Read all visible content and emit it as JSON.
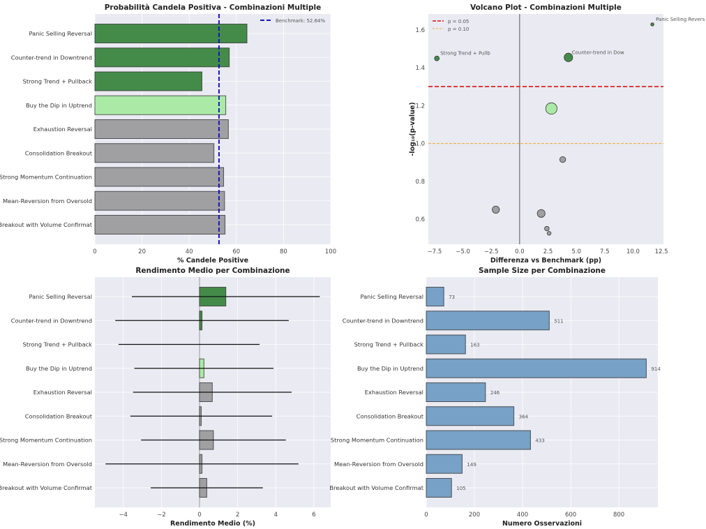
{
  "colors": {
    "background": "#eaeaf2",
    "grid": "#ffffff",
    "dark_green": "#448b4a",
    "light_green": "#aaeaa6",
    "gray": "#a0a0a2",
    "steelblue": "#77a1c6",
    "benchmark": "#1515c0",
    "p005": "#e03030",
    "p010": "#f0a830"
  },
  "categories": [
    "Panic Selling Reversal",
    "Counter-trend in Downtrend",
    "Strong Trend + Pullback",
    "Buy the Dip in Uptrend",
    "Exhaustion Reversal",
    "Consolidation Breakout",
    "Strong Momentum Continuation",
    "Mean-Reversion from Oversold",
    "Breakout with Volume Confirmat"
  ],
  "category_colors": [
    "dark_green",
    "dark_green",
    "dark_green",
    "light_green",
    "gray",
    "gray",
    "gray",
    "gray",
    "gray"
  ],
  "chart_data": [
    {
      "type": "bar",
      "orientation": "horizontal",
      "title": "Probabilità Candela Positiva - Combinazioni Multiple",
      "xlabel": "% Candele Positive",
      "xlim": [
        0,
        100
      ],
      "xticks": [
        0,
        20,
        40,
        60,
        80,
        100
      ],
      "values": [
        64.5,
        57.0,
        45.4,
        55.5,
        56.6,
        50.5,
        54.6,
        55.0,
        55.2
      ],
      "benchmark": {
        "value": 52.64,
        "label": "Benchmark: 52.64%"
      },
      "legend": "top-right",
      "grid": true
    },
    {
      "type": "scatter",
      "title": "Volcano Plot - Combinazioni Multiple",
      "xlabel": "Differenza vs Benchmark (pp)",
      "ylabel": "-log₁₀(p-value)",
      "xlim": [
        -8.05,
        12.68
      ],
      "ylim": [
        0.467,
        1.685
      ],
      "xticks": [
        -7.5,
        -5.0,
        -2.5,
        0.0,
        2.5,
        5.0,
        7.5,
        10.0,
        12.5
      ],
      "yticks": [
        0.6,
        0.8,
        1.0,
        1.2,
        1.4,
        1.6
      ],
      "x": [
        11.7,
        4.3,
        -7.3,
        2.8,
        3.8,
        -2.1,
        1.9,
        2.4,
        2.6
      ],
      "y": [
        1.63,
        1.455,
        1.45,
        1.185,
        0.915,
        0.65,
        0.63,
        0.55,
        0.525
      ],
      "point_labels": [
        "Panic Selling Revers",
        "Counter-trend in Dow",
        "Strong Trend + Pullb",
        "",
        "",
        "",
        "",
        "",
        ""
      ],
      "thresholds": [
        {
          "label": "p = 0.05",
          "y": 1.301,
          "color": "p005"
        },
        {
          "label": "p = 0.10",
          "y": 1.0,
          "color": "p010"
        }
      ],
      "legend": "top-left",
      "grid": true
    },
    {
      "type": "bar",
      "orientation": "horizontal",
      "title": "Rendimento Medio per Combinazione",
      "xlabel": "Rendimento Medio (%)",
      "xlim": [
        -5.49,
        6.88
      ],
      "xticks": [
        -4,
        -2,
        0,
        2,
        4,
        6
      ],
      "values": [
        1.38,
        0.13,
        -0.55,
        0.23,
        0.67,
        0.09,
        0.73,
        0.13,
        0.38
      ],
      "error": [
        4.93,
        4.55,
        3.7,
        3.65,
        4.16,
        3.72,
        3.8,
        5.06,
        2.94
      ],
      "grid": true
    },
    {
      "type": "bar",
      "orientation": "horizontal",
      "title": "Sample Size per Combinazione",
      "xlabel": "Numero Osservazioni",
      "xlim": [
        0,
        962
      ],
      "xticks": [
        0,
        200,
        400,
        600,
        800
      ],
      "values": [
        73,
        511,
        163,
        914,
        246,
        364,
        433,
        149,
        105
      ],
      "data_labels": [
        "73",
        "511",
        "163",
        "914",
        "246",
        "364",
        "433",
        "149",
        "105"
      ],
      "grid": true
    }
  ]
}
